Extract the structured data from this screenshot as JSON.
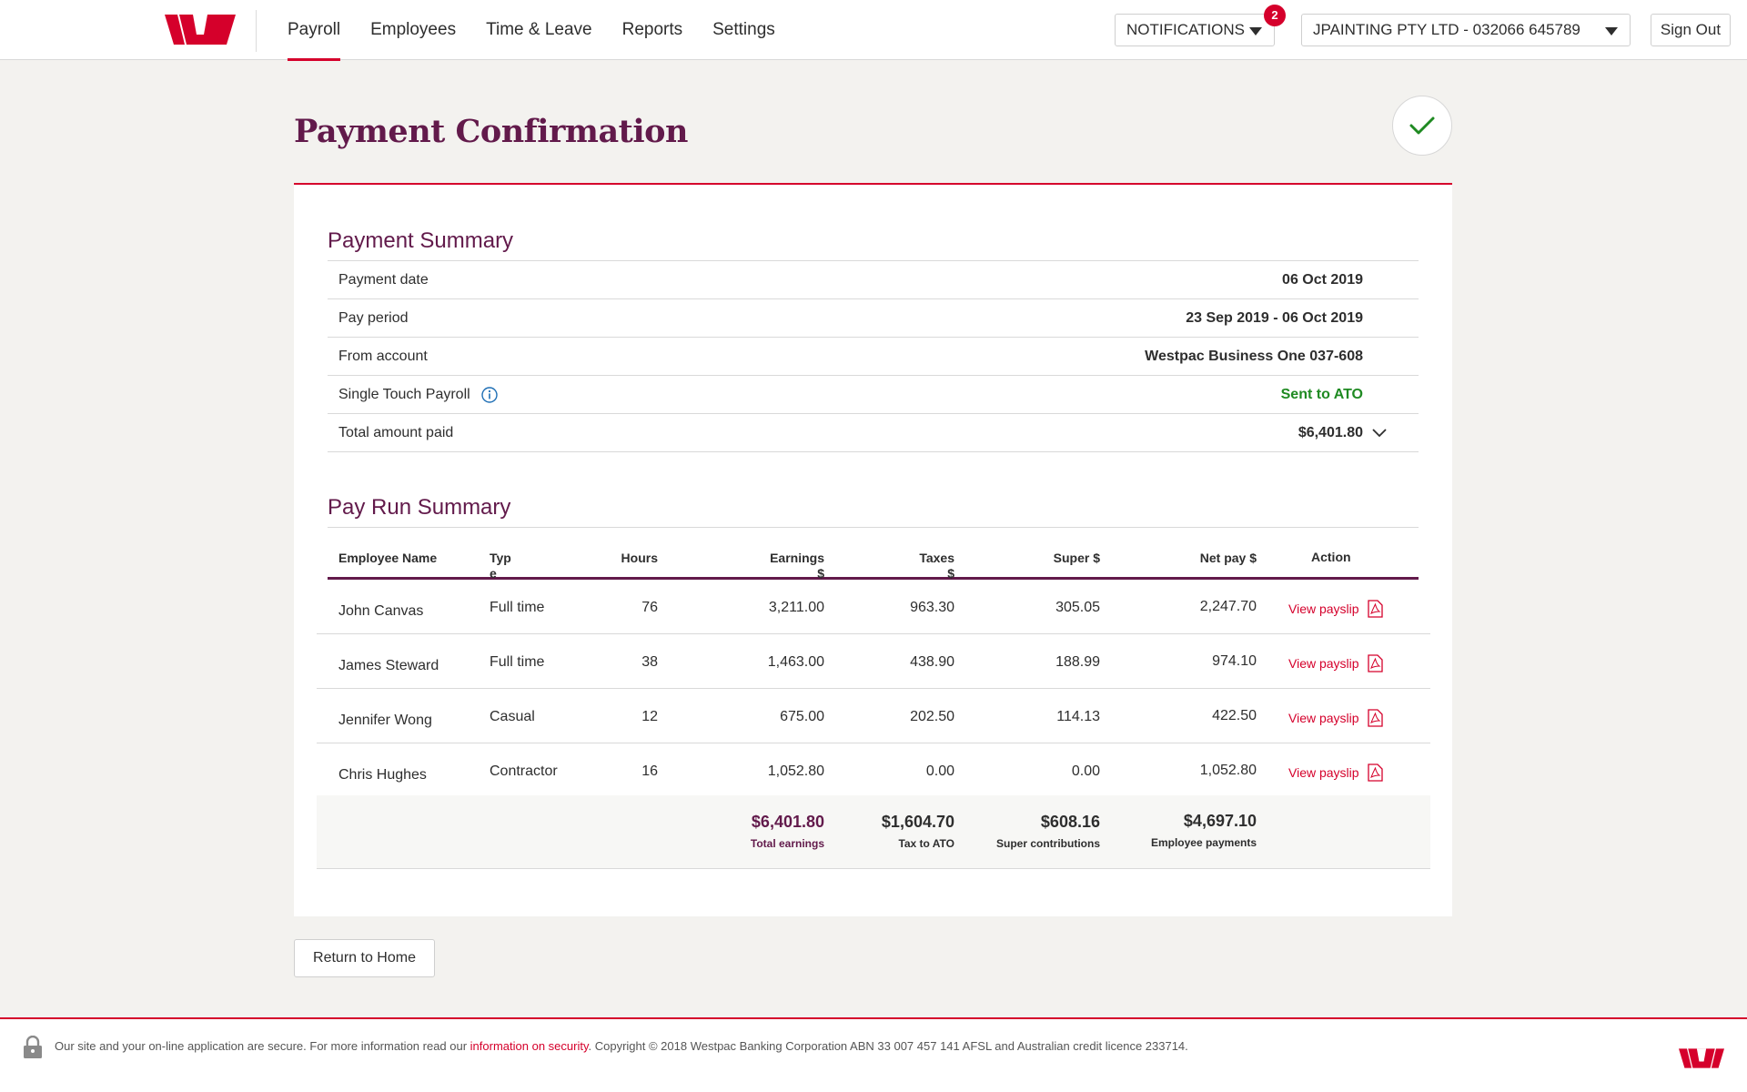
{
  "brand": {
    "accent": "#d5002b",
    "purple": "#621a4b",
    "success": "#1f8a22"
  },
  "nav": {
    "items": [
      {
        "label": "Payroll",
        "active": true
      },
      {
        "label": "Employees",
        "active": false
      },
      {
        "label": "Time & Leave",
        "active": false
      },
      {
        "label": "Reports",
        "active": false
      },
      {
        "label": "Settings",
        "active": false
      }
    ]
  },
  "header": {
    "notifications_label": "NOTIFICATIONS",
    "notifications_count": "2",
    "company_label": "JPAINTING PTY LTD - 032066 645789",
    "signout_label": "Sign Out"
  },
  "page": {
    "title": "Payment Confirmation"
  },
  "payment_summary": {
    "heading": "Payment Summary",
    "rows": [
      {
        "label": "Payment date",
        "value": "06 Oct 2019"
      },
      {
        "label": "Pay period",
        "value": "23 Sep 2019 - 06 Oct 2019"
      },
      {
        "label": "From account",
        "value": "Westpac Business One 037-608"
      },
      {
        "label": "Single Touch Payroll",
        "value": "Sent to ATO"
      },
      {
        "label": "Total amount paid",
        "value": "$6,401.80"
      }
    ]
  },
  "pay_run": {
    "heading": "Pay Run Summary",
    "columns": {
      "name": "Employee Name",
      "type": "Typ",
      "type2": "e",
      "hours": "Hours",
      "earnings": "Earnings",
      "earnings2": "$",
      "taxes": "Taxes",
      "taxes2": "$",
      "super": "Super $",
      "net": "Net pay $",
      "action": "Action"
    },
    "rows": [
      {
        "name": "John Canvas",
        "type": "Full time",
        "hours": "76",
        "earnings": "3,211.00",
        "taxes": "963.30",
        "super": "305.05",
        "net": "2,247.70",
        "action": "View payslip"
      },
      {
        "name": "James Steward",
        "type": "Full time",
        "hours": "38",
        "earnings": "1,463.00",
        "taxes": "438.90",
        "super": "188.99",
        "net": "974.10",
        "action": "View payslip"
      },
      {
        "name": "Jennifer Wong",
        "type": "Casual",
        "hours": "12",
        "earnings": "675.00",
        "taxes": "202.50",
        "super": "114.13",
        "net": "422.50",
        "action": "View payslip"
      },
      {
        "name": "Chris Hughes",
        "type": "Contractor",
        "hours": "16",
        "earnings": "1,052.80",
        "taxes": "0.00",
        "super": "0.00",
        "net": "1,052.80",
        "action": "View payslip"
      }
    ],
    "totals": {
      "earnings": {
        "value": "$6,401.80",
        "label": "Total earnings"
      },
      "tax": {
        "value": "$1,604.70",
        "label": "Tax to ATO"
      },
      "super": {
        "value": "$608.16",
        "label": "Super contributions"
      },
      "net": {
        "value": "$4,697.10",
        "label": "Employee payments"
      }
    }
  },
  "actions": {
    "return_label": "Return to Home"
  },
  "footer": {
    "text_before": "Our site and your on-line application are secure. For more information read our ",
    "link": "information on security",
    "text_after": ". Copyright © 2018 Westpac Banking Corporation ABN 33 007 457 141 AFSL and Australian credit licence 233714."
  }
}
